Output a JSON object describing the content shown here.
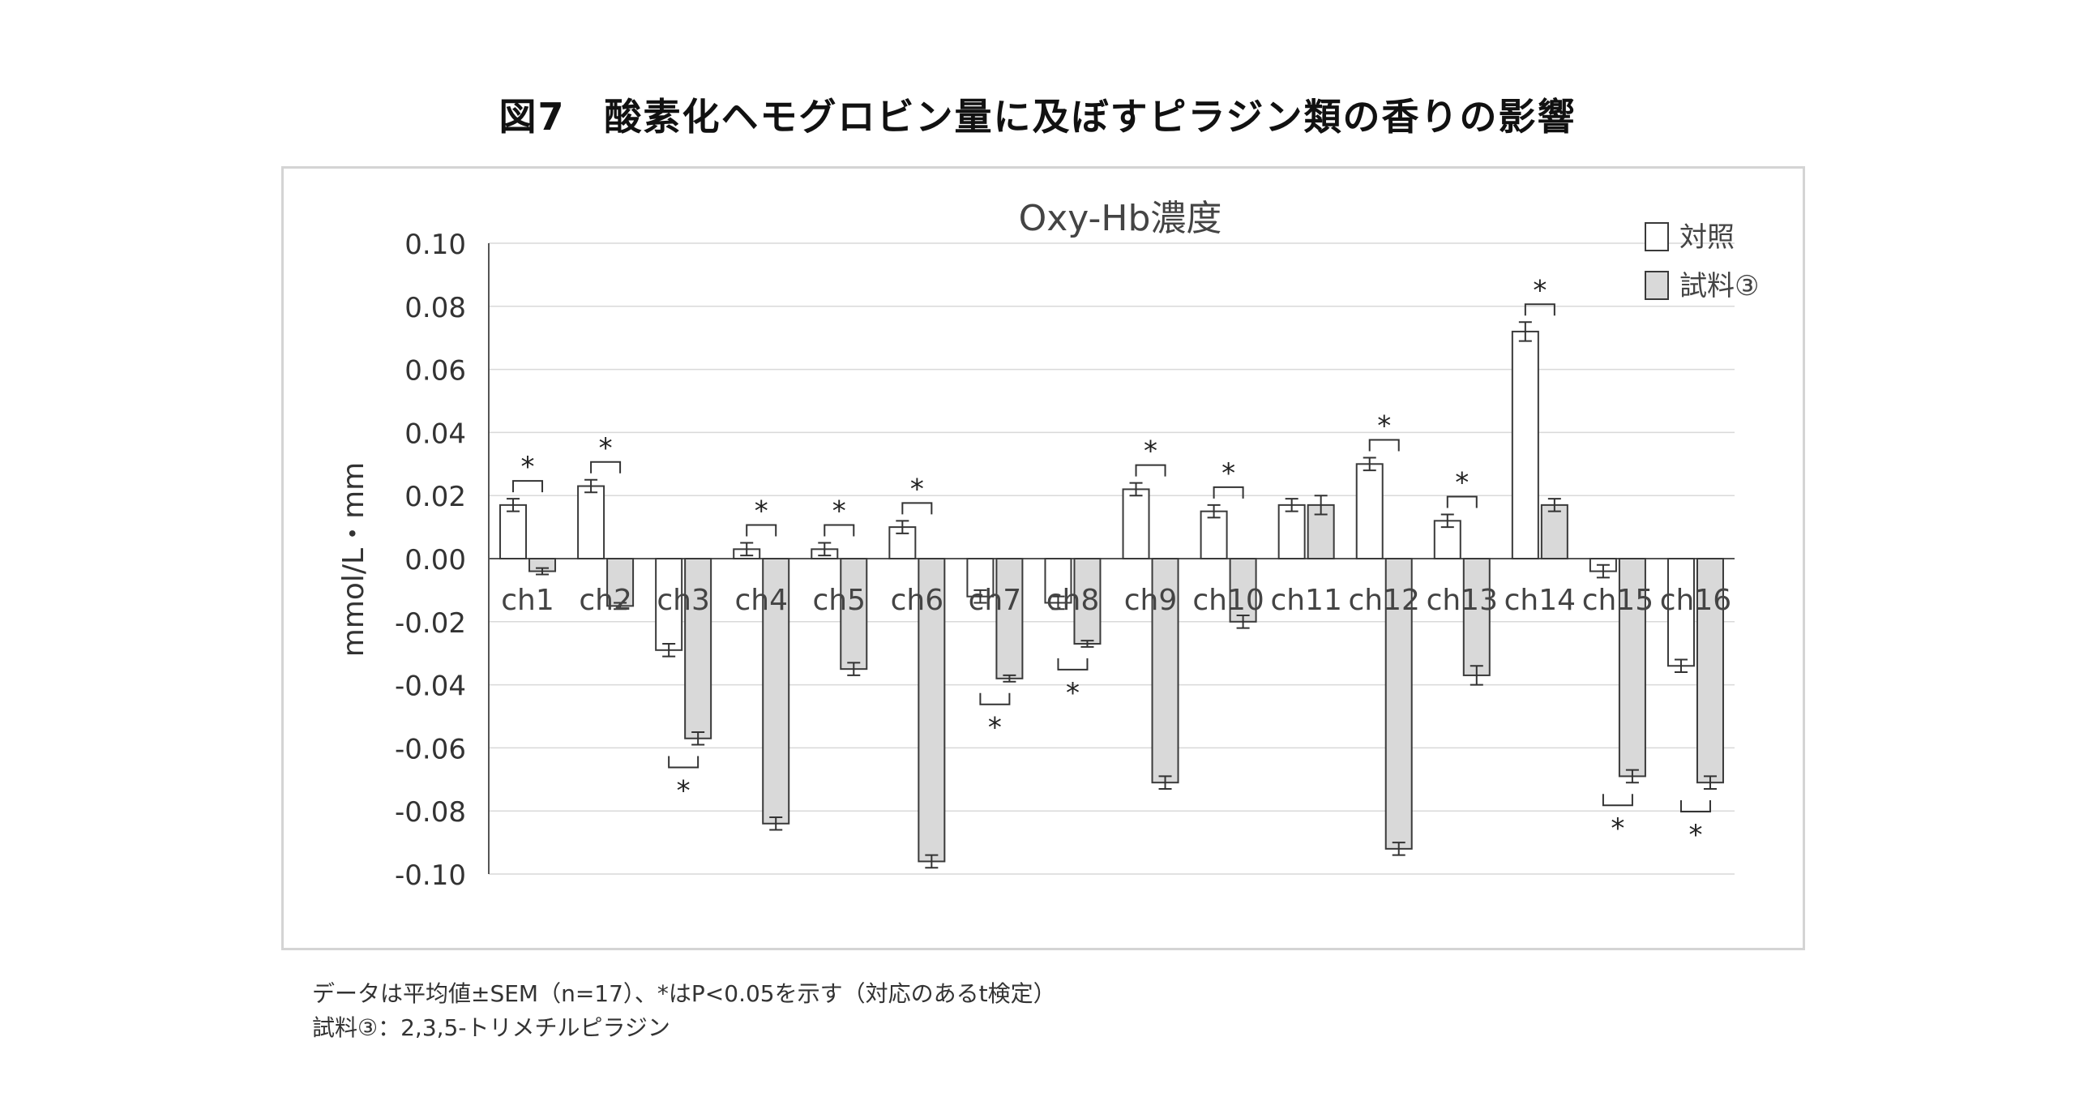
{
  "figure_title": "図7　酸素化ヘモグロビン量に及ぼすピラジン類の香りの影響",
  "notes": [
    "データは平均値±SEM（n=17）、*はP<0.05を示す（対応のあるt検定）",
    "試料③：2,3,5-トリメチルピラジン"
  ],
  "colors": {
    "control": "#ffffff",
    "sample": "#d9d9d9",
    "border": "#3a3a3a",
    "grid": "#d9d9d9"
  },
  "chart_data": {
    "type": "bar",
    "title": "Oxy-Hb濃度",
    "xlabel": "",
    "ylabel": "mmol/L・mm",
    "ylim": [
      -0.1,
      0.1
    ],
    "yticks": [
      "0.10",
      "0.08",
      "0.06",
      "0.04",
      "0.02",
      "0.00",
      "-0.02",
      "-0.04",
      "-0.06",
      "-0.08",
      "-0.10"
    ],
    "ytick_values": [
      0.1,
      0.08,
      0.06,
      0.04,
      0.02,
      0.0,
      -0.02,
      -0.04,
      -0.06,
      -0.08,
      -0.1
    ],
    "grid": true,
    "legend_position": "top-right",
    "categories": [
      "ch1",
      "ch2",
      "ch3",
      "ch4",
      "ch5",
      "ch6",
      "ch7",
      "ch8",
      "ch9",
      "ch10",
      "ch11",
      "ch12",
      "ch13",
      "ch14",
      "ch15",
      "ch16"
    ],
    "series": [
      {
        "name": "対照",
        "values": [
          0.017,
          0.023,
          -0.029,
          0.003,
          0.003,
          0.01,
          -0.012,
          -0.014,
          0.022,
          0.015,
          0.017,
          0.03,
          0.012,
          0.072,
          -0.004,
          -0.034
        ],
        "errors": [
          0.002,
          0.002,
          0.002,
          0.002,
          0.002,
          0.002,
          0.002,
          0.002,
          0.002,
          0.002,
          0.002,
          0.002,
          0.002,
          0.003,
          0.002,
          0.002
        ]
      },
      {
        "name": "試料③",
        "values": [
          -0.004,
          -0.015,
          -0.057,
          -0.084,
          -0.035,
          -0.096,
          -0.038,
          -0.027,
          -0.071,
          -0.02,
          0.017,
          -0.092,
          -0.037,
          0.017,
          -0.069,
          -0.071
        ],
        "errors": [
          0.001,
          0.001,
          0.002,
          0.002,
          0.002,
          0.002,
          0.001,
          0.001,
          0.002,
          0.002,
          0.003,
          0.002,
          0.003,
          0.002,
          0.002,
          0.002
        ]
      }
    ],
    "significance_marker": "*",
    "significant": [
      true,
      true,
      true,
      true,
      true,
      true,
      true,
      true,
      true,
      true,
      false,
      true,
      true,
      true,
      true,
      true
    ]
  }
}
